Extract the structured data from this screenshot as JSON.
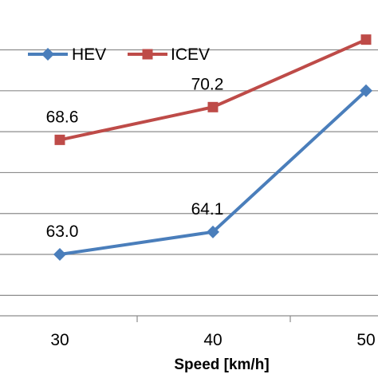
{
  "chart_data": {
    "type": "line",
    "title": "",
    "xlabel": "Speed [km/h]",
    "ylabel": "",
    "categories": [
      "30",
      "40",
      "50"
    ],
    "ylim": [
      60,
      74.5
    ],
    "y_gridlines": [
      61.0,
      63.0,
      65.0,
      67.0,
      69.0,
      71.0,
      73.0
    ],
    "grid": true,
    "legend_position": "top-left",
    "series": [
      {
        "name": "HEV",
        "color": "#4a7ebb",
        "marker": "diamond",
        "values": [
          63.0,
          64.1,
          71.0
        ],
        "data_labels": [
          "63.0",
          "64.1",
          null
        ]
      },
      {
        "name": "ICEV",
        "color": "#be4b48",
        "marker": "square",
        "values": [
          68.6,
          70.2,
          73.5
        ],
        "data_labels": [
          "68.6",
          "70.2",
          null
        ]
      }
    ]
  }
}
